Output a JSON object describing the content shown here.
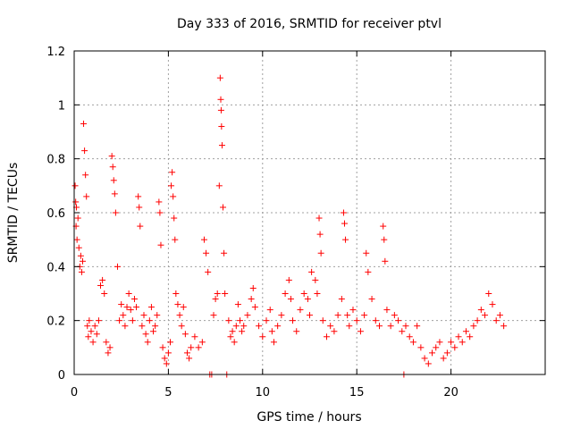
{
  "chart_data": {
    "type": "scatter",
    "title": "Day 333 of 2016, SRMTID for receiver ptvl",
    "xlabel": "GPS time / hours",
    "ylabel": "SRMTID / TECUs",
    "xlim": [
      0,
      25
    ],
    "ylim": [
      0,
      1.2
    ],
    "xticks": [
      0,
      5,
      10,
      15,
      20
    ],
    "xtick_labels": [
      "0",
      "5",
      "10",
      "15",
      "20"
    ],
    "yticks": [
      0,
      0.2,
      0.4,
      0.6,
      0.8,
      1.0,
      1.2
    ],
    "ytick_labels": [
      "0",
      "0.2",
      "0.4",
      "0.6",
      "0.8",
      "1",
      "1.2"
    ],
    "grid": true,
    "marker": "plus",
    "color": "#ff0000",
    "series": [
      {
        "name": "SRMTID",
        "points": [
          [
            0.05,
            0.7
          ],
          [
            0.08,
            0.64
          ],
          [
            0.1,
            0.55
          ],
          [
            0.12,
            0.62
          ],
          [
            0.15,
            0.5
          ],
          [
            0.2,
            0.58
          ],
          [
            0.25,
            0.47
          ],
          [
            0.3,
            0.4
          ],
          [
            0.35,
            0.44
          ],
          [
            0.4,
            0.38
          ],
          [
            0.45,
            0.42
          ],
          [
            0.5,
            0.93
          ],
          [
            0.55,
            0.83
          ],
          [
            0.6,
            0.74
          ],
          [
            0.65,
            0.66
          ],
          [
            0.7,
            0.18
          ],
          [
            0.75,
            0.14
          ],
          [
            0.8,
            0.2
          ],
          [
            0.9,
            0.16
          ],
          [
            1.0,
            0.12
          ],
          [
            1.1,
            0.18
          ],
          [
            1.2,
            0.15
          ],
          [
            1.3,
            0.2
          ],
          [
            1.4,
            0.33
          ],
          [
            1.5,
            0.35
          ],
          [
            1.6,
            0.3
          ],
          [
            1.7,
            0.12
          ],
          [
            1.8,
            0.08
          ],
          [
            1.9,
            0.1
          ],
          [
            2.0,
            0.81
          ],
          [
            2.05,
            0.77
          ],
          [
            2.1,
            0.72
          ],
          [
            2.15,
            0.67
          ],
          [
            2.2,
            0.6
          ],
          [
            2.3,
            0.4
          ],
          [
            2.4,
            0.2
          ],
          [
            2.5,
            0.26
          ],
          [
            2.6,
            0.22
          ],
          [
            2.7,
            0.18
          ],
          [
            2.8,
            0.25
          ],
          [
            2.9,
            0.3
          ],
          [
            3.0,
            0.24
          ],
          [
            3.1,
            0.2
          ],
          [
            3.2,
            0.28
          ],
          [
            3.3,
            0.25
          ],
          [
            3.4,
            0.66
          ],
          [
            3.45,
            0.62
          ],
          [
            3.5,
            0.55
          ],
          [
            3.6,
            0.18
          ],
          [
            3.7,
            0.22
          ],
          [
            3.8,
            0.15
          ],
          [
            3.9,
            0.12
          ],
          [
            4.0,
            0.2
          ],
          [
            4.1,
            0.25
          ],
          [
            4.2,
            0.16
          ],
          [
            4.3,
            0.18
          ],
          [
            4.4,
            0.22
          ],
          [
            4.5,
            0.64
          ],
          [
            4.55,
            0.6
          ],
          [
            4.6,
            0.48
          ],
          [
            4.7,
            0.1
          ],
          [
            4.8,
            0.06
          ],
          [
            4.9,
            0.04
          ],
          [
            5.0,
            0.08
          ],
          [
            5.1,
            0.12
          ],
          [
            5.15,
            0.7
          ],
          [
            5.2,
            0.75
          ],
          [
            5.25,
            0.66
          ],
          [
            5.3,
            0.58
          ],
          [
            5.35,
            0.5
          ],
          [
            5.4,
            0.3
          ],
          [
            5.5,
            0.26
          ],
          [
            5.6,
            0.22
          ],
          [
            5.7,
            0.18
          ],
          [
            5.8,
            0.25
          ],
          [
            5.9,
            0.15
          ],
          [
            6.0,
            0.08
          ],
          [
            6.1,
            0.06
          ],
          [
            6.2,
            0.1
          ],
          [
            6.4,
            0.14
          ],
          [
            6.6,
            0.1
          ],
          [
            6.8,
            0.12
          ],
          [
            6.9,
            0.5
          ],
          [
            7.0,
            0.45
          ],
          [
            7.1,
            0.38
          ],
          [
            7.2,
            0.0
          ],
          [
            7.3,
            0.0
          ],
          [
            7.4,
            0.22
          ],
          [
            7.5,
            0.28
          ],
          [
            7.6,
            0.3
          ],
          [
            7.7,
            0.7
          ],
          [
            7.75,
            1.1
          ],
          [
            7.78,
            1.02
          ],
          [
            7.8,
            0.98
          ],
          [
            7.82,
            0.92
          ],
          [
            7.85,
            0.85
          ],
          [
            7.9,
            0.62
          ],
          [
            7.95,
            0.45
          ],
          [
            8.0,
            0.3
          ],
          [
            8.1,
            0.0
          ],
          [
            8.2,
            0.2
          ],
          [
            8.3,
            0.14
          ],
          [
            8.4,
            0.16
          ],
          [
            8.5,
            0.12
          ],
          [
            8.6,
            0.18
          ],
          [
            8.7,
            0.26
          ],
          [
            8.8,
            0.2
          ],
          [
            8.9,
            0.16
          ],
          [
            9.0,
            0.18
          ],
          [
            9.2,
            0.22
          ],
          [
            9.4,
            0.28
          ],
          [
            9.5,
            0.32
          ],
          [
            9.6,
            0.25
          ],
          [
            9.8,
            0.18
          ],
          [
            10.0,
            0.14
          ],
          [
            10.2,
            0.2
          ],
          [
            10.4,
            0.24
          ],
          [
            10.5,
            0.16
          ],
          [
            10.6,
            0.12
          ],
          [
            10.8,
            0.18
          ],
          [
            11.0,
            0.22
          ],
          [
            11.2,
            0.3
          ],
          [
            11.4,
            0.35
          ],
          [
            11.5,
            0.28
          ],
          [
            11.6,
            0.2
          ],
          [
            11.8,
            0.16
          ],
          [
            12.0,
            0.24
          ],
          [
            12.2,
            0.3
          ],
          [
            12.4,
            0.28
          ],
          [
            12.5,
            0.22
          ],
          [
            12.6,
            0.38
          ],
          [
            12.8,
            0.35
          ],
          [
            12.9,
            0.3
          ],
          [
            13.0,
            0.58
          ],
          [
            13.05,
            0.52
          ],
          [
            13.1,
            0.45
          ],
          [
            13.2,
            0.2
          ],
          [
            13.4,
            0.14
          ],
          [
            13.6,
            0.18
          ],
          [
            13.8,
            0.16
          ],
          [
            14.0,
            0.22
          ],
          [
            14.2,
            0.28
          ],
          [
            14.3,
            0.6
          ],
          [
            14.35,
            0.56
          ],
          [
            14.4,
            0.5
          ],
          [
            14.5,
            0.22
          ],
          [
            14.6,
            0.18
          ],
          [
            14.8,
            0.24
          ],
          [
            15.0,
            0.2
          ],
          [
            15.2,
            0.16
          ],
          [
            15.4,
            0.22
          ],
          [
            15.5,
            0.45
          ],
          [
            15.6,
            0.38
          ],
          [
            15.8,
            0.28
          ],
          [
            16.0,
            0.2
          ],
          [
            16.2,
            0.18
          ],
          [
            16.4,
            0.55
          ],
          [
            16.45,
            0.5
          ],
          [
            16.5,
            0.42
          ],
          [
            16.6,
            0.24
          ],
          [
            16.8,
            0.18
          ],
          [
            17.0,
            0.22
          ],
          [
            17.2,
            0.2
          ],
          [
            17.4,
            0.16
          ],
          [
            17.5,
            0.0
          ],
          [
            17.6,
            0.18
          ],
          [
            17.8,
            0.14
          ],
          [
            18.0,
            0.12
          ],
          [
            18.2,
            0.18
          ],
          [
            18.4,
            0.1
          ],
          [
            18.6,
            0.06
          ],
          [
            18.8,
            0.04
          ],
          [
            19.0,
            0.08
          ],
          [
            19.2,
            0.1
          ],
          [
            19.4,
            0.12
          ],
          [
            19.6,
            0.06
          ],
          [
            19.8,
            0.08
          ],
          [
            20.0,
            0.12
          ],
          [
            20.2,
            0.1
          ],
          [
            20.4,
            0.14
          ],
          [
            20.6,
            0.12
          ],
          [
            20.8,
            0.16
          ],
          [
            21.0,
            0.14
          ],
          [
            21.2,
            0.18
          ],
          [
            21.4,
            0.2
          ],
          [
            21.6,
            0.24
          ],
          [
            21.8,
            0.22
          ],
          [
            22.0,
            0.3
          ],
          [
            22.2,
            0.26
          ],
          [
            22.4,
            0.2
          ],
          [
            22.6,
            0.22
          ],
          [
            22.8,
            0.18
          ]
        ]
      }
    ]
  }
}
